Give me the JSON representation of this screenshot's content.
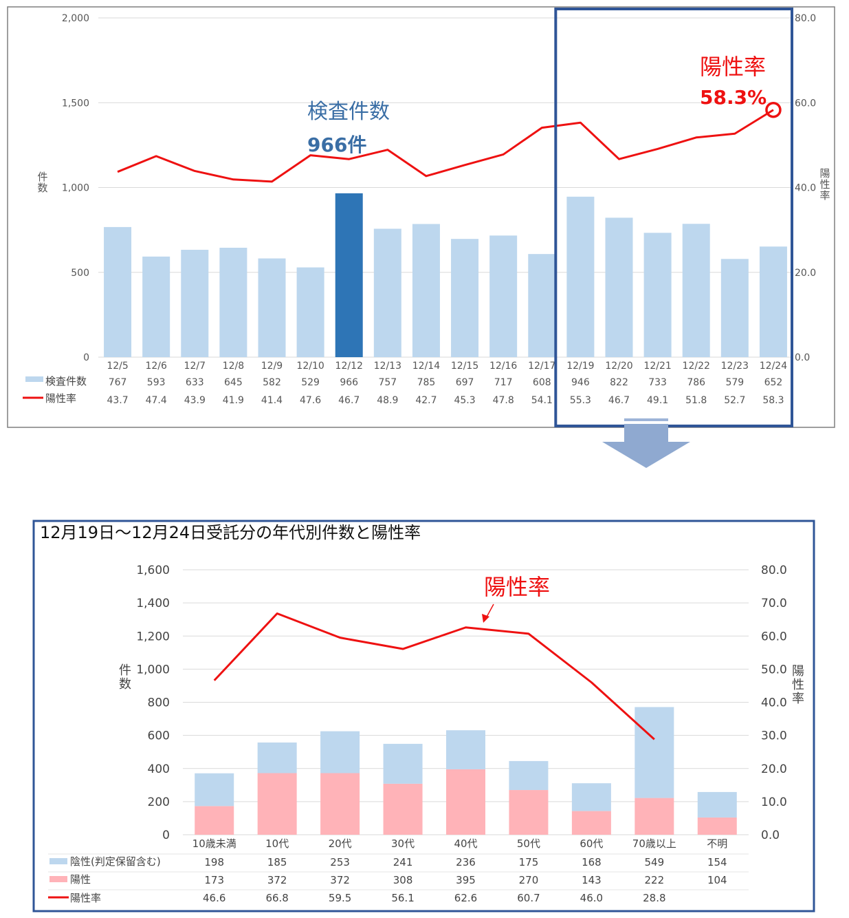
{
  "chart_data": [
    {
      "type": "bar+line",
      "categories": [
        "12/5",
        "12/6",
        "12/7",
        "12/8",
        "12/9",
        "12/10",
        "12/12",
        "12/13",
        "12/14",
        "12/15",
        "12/16",
        "12/17",
        "12/19",
        "12/20",
        "12/21",
        "12/22",
        "12/23",
        "12/24"
      ],
      "series": [
        {
          "name": "検査件数",
          "type": "bar",
          "axis": "left",
          "values": [
            767,
            593,
            633,
            645,
            582,
            529,
            966,
            757,
            785,
            697,
            717,
            608,
            946,
            822,
            733,
            786,
            579,
            652
          ]
        },
        {
          "name": "陽性率",
          "type": "line",
          "axis": "right",
          "values": [
            43.7,
            47.4,
            43.9,
            41.9,
            41.4,
            47.6,
            46.7,
            48.9,
            42.7,
            45.3,
            47.8,
            54.1,
            55.3,
            46.7,
            49.1,
            51.8,
            52.7,
            58.3
          ]
        }
      ],
      "highlight_index": 6,
      "left_axis": {
        "label": "件数",
        "ylim": [
          0,
          2000
        ],
        "ticks": [
          "0",
          "500",
          "1,000",
          "1,500",
          "2,000"
        ]
      },
      "right_axis": {
        "label": "陽性率",
        "ylim": [
          0,
          80
        ],
        "ticks": [
          "0.0",
          "20.0",
          "40.0",
          "60.0",
          "80.0"
        ]
      },
      "annotations": [
        {
          "text": "検査件数",
          "color": "#3a6ea5"
        },
        {
          "text": "966件",
          "color": "#3a6ea5"
        },
        {
          "text": "陽性率",
          "color": "#ee1111"
        },
        {
          "text": "58.3%",
          "color": "#ee1111"
        }
      ],
      "highlight_box": {
        "from_category": "12/19",
        "to_category": "12/24"
      },
      "colors": {
        "bar": "#bdd7ee",
        "bar_highlight": "#2e75b6",
        "line": "#ee1111",
        "box": "#2f5597"
      }
    },
    {
      "type": "stacked-bar+line",
      "title": "12月19日～12月24日受託分の年代別件数と陽性率",
      "categories": [
        "10歳未満",
        "10代",
        "20代",
        "30代",
        "40代",
        "50代",
        "60代",
        "70歳以上",
        "不明"
      ],
      "series": [
        {
          "name": "陰性(判定保留含む)",
          "type": "bar",
          "stack": "a",
          "axis": "left",
          "values": [
            198,
            185,
            253,
            241,
            236,
            175,
            168,
            549,
            154
          ]
        },
        {
          "name": "陽性",
          "type": "bar",
          "stack": "a",
          "axis": "left",
          "values": [
            173,
            372,
            372,
            308,
            395,
            270,
            143,
            222,
            104
          ]
        },
        {
          "name": "陽性率",
          "type": "line",
          "axis": "right",
          "values": [
            46.6,
            66.8,
            59.5,
            56.1,
            62.6,
            60.7,
            46.0,
            28.8,
            null
          ]
        }
      ],
      "left_axis": {
        "label": "件数",
        "ylim": [
          0,
          1600
        ],
        "ticks": [
          "0",
          "200",
          "400",
          "600",
          "800",
          "1,000",
          "1,200",
          "1,400",
          "1,600"
        ]
      },
      "right_axis": {
        "label": "陽性率",
        "ylim": [
          0,
          80
        ],
        "ticks": [
          "0.0",
          "10.0",
          "20.0",
          "30.0",
          "40.0",
          "50.0",
          "60.0",
          "70.0",
          "80.0"
        ]
      },
      "annotations": [
        {
          "text": "陽性率",
          "color": "#ee1111"
        }
      ],
      "colors": {
        "negative": "#bdd7ee",
        "positive": "#ffb3b8",
        "line": "#ee1111",
        "border": "#2f5597"
      }
    }
  ]
}
